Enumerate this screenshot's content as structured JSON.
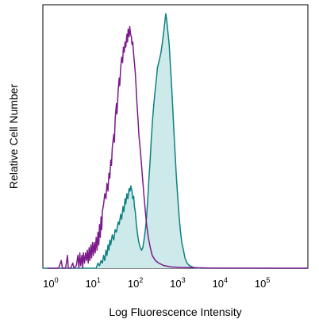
{
  "chart_data": {
    "type": "area",
    "title": "",
    "xlabel": "Log Fluorescence Intensity",
    "ylabel": "Relative Cell Number",
    "x_scale": "log",
    "xlim": [
      0.55,
      1000000
    ],
    "ylim": [
      0,
      100
    ],
    "grid": false,
    "x_ticks": [
      {
        "value": 1,
        "base": "10",
        "exp": "0"
      },
      {
        "value": 10,
        "base": "10",
        "exp": "1"
      },
      {
        "value": 100,
        "base": "10",
        "exp": "2"
      },
      {
        "value": 1000,
        "base": "10",
        "exp": "3"
      },
      {
        "value": 10000,
        "base": "10",
        "exp": "4"
      },
      {
        "value": 100000,
        "base": "10",
        "exp": "5"
      }
    ],
    "series": [
      {
        "style": "outline",
        "color": "#7b1a8a",
        "points": [
          [
            0.7,
            0
          ],
          [
            1.3,
            0
          ],
          [
            1.5,
            3
          ],
          [
            1.6,
            0
          ],
          [
            1.9,
            0
          ],
          [
            2.1,
            5
          ],
          [
            2.2,
            0
          ],
          [
            2.5,
            0
          ],
          [
            2.8,
            2
          ],
          [
            3.0,
            0
          ],
          [
            3.4,
            1
          ],
          [
            3.7,
            5
          ],
          [
            3.9,
            0
          ],
          [
            4.1,
            6
          ],
          [
            4.3,
            1
          ],
          [
            4.6,
            5
          ],
          [
            4.8,
            0
          ],
          [
            5.0,
            6
          ],
          [
            5.3,
            2
          ],
          [
            5.6,
            6
          ],
          [
            5.9,
            3
          ],
          [
            6.2,
            7
          ],
          [
            6.5,
            2
          ],
          [
            6.8,
            8
          ],
          [
            7.1,
            3
          ],
          [
            7.5,
            9
          ],
          [
            7.8,
            4
          ],
          [
            8.2,
            10
          ],
          [
            8.6,
            5
          ],
          [
            9,
            10
          ],
          [
            9.5,
            6
          ],
          [
            10,
            12
          ],
          [
            10.5,
            7
          ],
          [
            11,
            14
          ],
          [
            11.5,
            9
          ],
          [
            12,
            17
          ],
          [
            12.5,
            12
          ],
          [
            13,
            20
          ],
          [
            13.5,
            15
          ],
          [
            14,
            22
          ],
          [
            15,
            25
          ],
          [
            16,
            29
          ],
          [
            17,
            27
          ],
          [
            18,
            33
          ],
          [
            19,
            30
          ],
          [
            20,
            37
          ],
          [
            21,
            35
          ],
          [
            22,
            42
          ],
          [
            23,
            40
          ],
          [
            24,
            47
          ],
          [
            26,
            52
          ],
          [
            27,
            49
          ],
          [
            28,
            58
          ],
          [
            30,
            64
          ],
          [
            31,
            60
          ],
          [
            33,
            69
          ],
          [
            35,
            74
          ],
          [
            36,
            71
          ],
          [
            38,
            78
          ],
          [
            40,
            82
          ],
          [
            42,
            80
          ],
          [
            44,
            86
          ],
          [
            46,
            84
          ],
          [
            48,
            88
          ],
          [
            50,
            86
          ],
          [
            53,
            91
          ],
          [
            55,
            88
          ],
          [
            57,
            93
          ],
          [
            60,
            90
          ],
          [
            62,
            94
          ],
          [
            65,
            91
          ],
          [
            68,
            90
          ],
          [
            70,
            87
          ],
          [
            73,
            88
          ],
          [
            76,
            84
          ],
          [
            80,
            80
          ],
          [
            84,
            76
          ],
          [
            88,
            70
          ],
          [
            92,
            64
          ],
          [
            97,
            58
          ],
          [
            102,
            52
          ],
          [
            110,
            46
          ],
          [
            118,
            40
          ],
          [
            126,
            34
          ],
          [
            135,
            28
          ],
          [
            145,
            22
          ],
          [
            155,
            17
          ],
          [
            170,
            12
          ],
          [
            190,
            8
          ],
          [
            210,
            5
          ],
          [
            250,
            3
          ],
          [
            300,
            2
          ],
          [
            400,
            1
          ],
          [
            600,
            0.5
          ],
          [
            1000,
            0.3
          ],
          [
            5000,
            0.1
          ],
          [
            200000,
            0
          ],
          [
            1000000,
            0
          ]
        ]
      },
      {
        "style": "filled",
        "color": "#0e8080",
        "fill": "#cde9e9",
        "points": [
          [
            0.55,
            0
          ],
          [
            10,
            0
          ],
          [
            11,
            2
          ],
          [
            12,
            1
          ],
          [
            13,
            3
          ],
          [
            14,
            2
          ],
          [
            15,
            5
          ],
          [
            16,
            3
          ],
          [
            17,
            7
          ],
          [
            18,
            5
          ],
          [
            19,
            9
          ],
          [
            20,
            7
          ],
          [
            21,
            11
          ],
          [
            22,
            9
          ],
          [
            24,
            13
          ],
          [
            26,
            11
          ],
          [
            28,
            15
          ],
          [
            30,
            14
          ],
          [
            33,
            18
          ],
          [
            35,
            17
          ],
          [
            38,
            21
          ],
          [
            40,
            19
          ],
          [
            43,
            24
          ],
          [
            45,
            22
          ],
          [
            48,
            27
          ],
          [
            50,
            25
          ],
          [
            53,
            29
          ],
          [
            56,
            27
          ],
          [
            60,
            31
          ],
          [
            63,
            30
          ],
          [
            66,
            32
          ],
          [
            70,
            30
          ],
          [
            73,
            27
          ],
          [
            77,
            28
          ],
          [
            80,
            24
          ],
          [
            84,
            22
          ],
          [
            88,
            18
          ],
          [
            92,
            15
          ],
          [
            97,
            12
          ],
          [
            102,
            10
          ],
          [
            110,
            8
          ],
          [
            118,
            7
          ],
          [
            126,
            8
          ],
          [
            135,
            11
          ],
          [
            145,
            15
          ],
          [
            155,
            20
          ],
          [
            165,
            27
          ],
          [
            175,
            34
          ],
          [
            188,
            42
          ],
          [
            200,
            50
          ],
          [
            215,
            58
          ],
          [
            230,
            64
          ],
          [
            250,
            70
          ],
          [
            265,
            74
          ],
          [
            280,
            78
          ],
          [
            300,
            80
          ],
          [
            320,
            82
          ],
          [
            340,
            84
          ],
          [
            360,
            87
          ],
          [
            380,
            90
          ],
          [
            400,
            93
          ],
          [
            420,
            96
          ],
          [
            440,
            99
          ],
          [
            460,
            97
          ],
          [
            480,
            94
          ],
          [
            500,
            91
          ],
          [
            530,
            87
          ],
          [
            560,
            80
          ],
          [
            600,
            72
          ],
          [
            640,
            63
          ],
          [
            680,
            54
          ],
          [
            730,
            45
          ],
          [
            780,
            36
          ],
          [
            840,
            28
          ],
          [
            900,
            21
          ],
          [
            970,
            15
          ],
          [
            1050,
            10
          ],
          [
            1150,
            7
          ],
          [
            1250,
            4
          ],
          [
            1400,
            2
          ],
          [
            1600,
            1
          ],
          [
            2000,
            0.3
          ],
          [
            3000,
            0
          ],
          [
            1000000,
            0
          ]
        ]
      }
    ]
  }
}
